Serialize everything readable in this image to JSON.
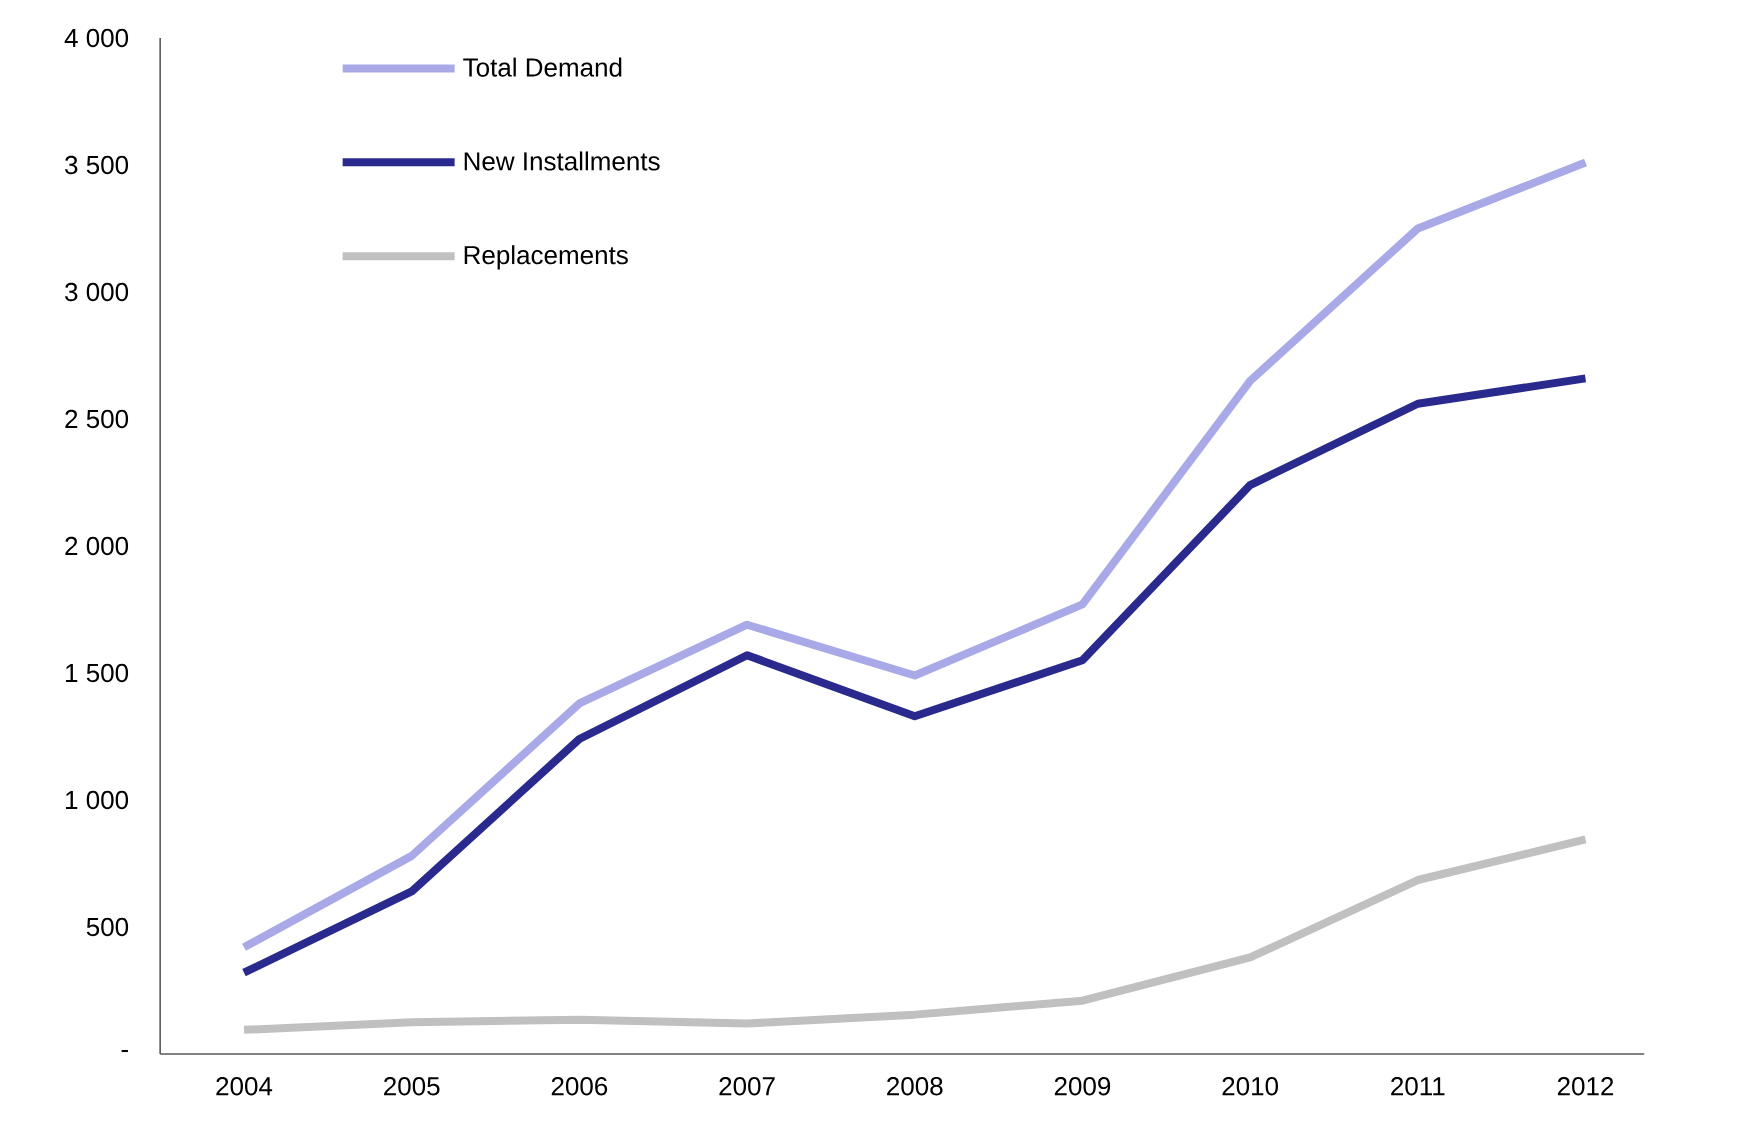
{
  "chart_data": {
    "type": "line",
    "categories": [
      "2004",
      "2005",
      "2006",
      "2007",
      "2008",
      "2009",
      "2010",
      "2011",
      "2012"
    ],
    "series": [
      {
        "name": "Total Demand",
        "color": "#a9a9e8",
        "values": [
          420,
          780,
          1380,
          1690,
          1490,
          1770,
          2650,
          3250,
          3510
        ]
      },
      {
        "name": "New Installments",
        "color": "#2a2a8e",
        "values": [
          320,
          640,
          1240,
          1570,
          1330,
          1550,
          2240,
          2560,
          2660
        ]
      },
      {
        "name": "Replacements",
        "color": "#c0c0c0",
        "values": [
          95,
          125,
          135,
          120,
          155,
          210,
          380,
          685,
          845
        ]
      }
    ],
    "ylim": [
      0,
      4000
    ],
    "yticks": [
      {
        "value": 0,
        "label": "-"
      },
      500,
      {
        "value": 1000,
        "label": "1 000"
      },
      {
        "value": 1500,
        "label": "1 500"
      },
      {
        "value": 2000,
        "label": "2 000"
      },
      {
        "value": 2500,
        "label": "2 500"
      },
      {
        "value": 3000,
        "label": "3 000"
      },
      {
        "value": 3500,
        "label": "3 500"
      },
      {
        "value": 4000,
        "label": "4 000"
      }
    ],
    "grid": false,
    "legend": "top left",
    "marker": "none",
    "line_style": "solid"
  }
}
